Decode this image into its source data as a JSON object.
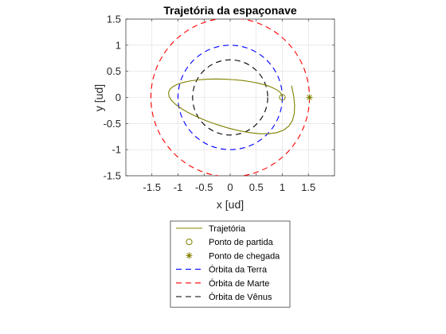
{
  "chart_data": {
    "type": "line",
    "title": "Trajetória da espaçonave",
    "xlabel": "x [ud]",
    "ylabel": "y [ud]",
    "xlim": [
      -2,
      2
    ],
    "ylim": [
      -1.5,
      1.5
    ],
    "xticks": [
      -1.5,
      -1,
      -0.5,
      0,
      0.5,
      1,
      1.5
    ],
    "yticks": [
      -1.5,
      -1,
      -0.5,
      0,
      0.5,
      1,
      1.5
    ],
    "xticklabels": [
      "-1.5",
      "-1",
      "-0.5",
      "0",
      "0.5",
      "1",
      "1.5"
    ],
    "yticklabels": [
      "-1.5",
      "-1",
      "-0.5",
      "0",
      "0.5",
      "1",
      "1.5"
    ],
    "grid": true,
    "legend_position": "bottom-outside",
    "series": [
      {
        "name": "Trajetória",
        "color": "#808000",
        "style": "solid",
        "x": [
          1.0,
          0.99,
          0.955,
          0.893,
          0.805,
          0.694,
          0.562,
          0.412,
          0.249,
          0.077,
          -0.101,
          -0.28,
          -0.455,
          -0.622,
          -0.774,
          -0.908,
          -1.019,
          -1.104,
          -1.159,
          -1.182,
          -1.172,
          -1.128,
          -1.05,
          -0.94,
          -0.801,
          -0.637,
          -0.452,
          -0.252,
          -0.043,
          0.168,
          0.374,
          0.568,
          0.745,
          0.9,
          1.028,
          1.126,
          1.193,
          1.229,
          1.236,
          1.217,
          1.177
        ],
        "y": [
          0.0,
          0.05,
          0.099,
          0.146,
          0.19,
          0.231,
          0.267,
          0.297,
          0.322,
          0.339,
          0.35,
          0.353,
          0.348,
          0.335,
          0.314,
          0.285,
          0.248,
          0.202,
          0.149,
          0.088,
          0.02,
          -0.053,
          -0.131,
          -0.211,
          -0.292,
          -0.372,
          -0.449,
          -0.521,
          -0.585,
          -0.637,
          -0.675,
          -0.696,
          -0.696,
          -0.673,
          -0.624,
          -0.548,
          -0.443,
          -0.309,
          -0.149,
          0.031,
          0.225
        ]
      },
      {
        "name": "Ponto de partida",
        "color": "#808000",
        "marker": "circle",
        "x": [
          1.0
        ],
        "y": [
          0.0
        ]
      },
      {
        "name": "Ponto de chegada",
        "color": "#808000",
        "marker": "asterisk",
        "x": [
          1.52
        ],
        "y": [
          0.0
        ]
      },
      {
        "name": "Órbita da Terra",
        "color": "#0000FF",
        "style": "dashed",
        "radius": 1.0
      },
      {
        "name": "Órbita de Marte",
        "color": "#FF0000",
        "style": "dashed",
        "radius": 1.52
      },
      {
        "name": "Órbita de Vênus",
        "color": "#000000",
        "style": "dashed",
        "radius": 0.72
      }
    ]
  }
}
